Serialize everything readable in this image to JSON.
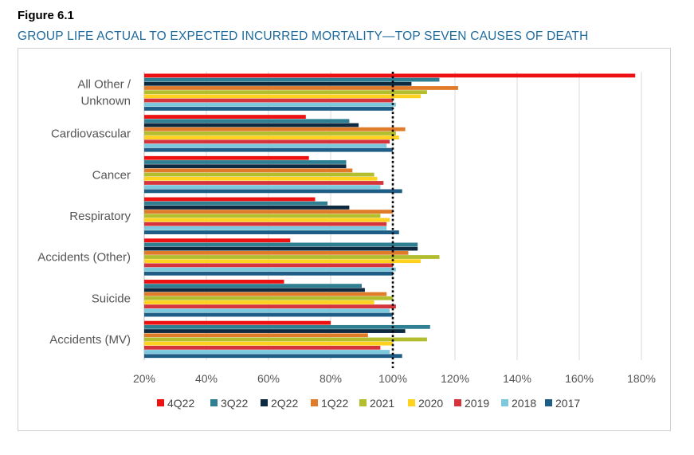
{
  "figure_label": "Figure 6.1",
  "figure_title": "GROUP LIFE ACTUAL TO EXPECTED INCURRED MORTALITY—TOP SEVEN CAUSES OF DEATH",
  "chart_data": {
    "type": "bar",
    "orientation": "horizontal",
    "title": "GROUP LIFE ACTUAL TO EXPECTED INCURRED MORTALITY—TOP SEVEN CAUSES OF DEATH",
    "categories": [
      [
        "All Other /",
        "Unknown"
      ],
      [
        "Cardiovascular"
      ],
      [
        "Cancer"
      ],
      [
        "Respiratory"
      ],
      [
        "Accidents (Other)"
      ],
      [
        "Suicide"
      ],
      [
        "Accidents (MV)"
      ]
    ],
    "xlim": [
      20,
      180
    ],
    "xticks": [
      20,
      40,
      60,
      80,
      100,
      120,
      140,
      160,
      180
    ],
    "xtick_labels": [
      "20%",
      "40%",
      "60%",
      "80%",
      "100%",
      "120%",
      "140%",
      "160%",
      "180%"
    ],
    "reference_line": 100,
    "grid": "vertical",
    "legend_position": "bottom",
    "series": [
      {
        "name": "4Q22",
        "color": "#ee1111",
        "values": [
          178,
          72,
          73,
          75,
          67,
          65,
          80
        ]
      },
      {
        "name": "3Q22",
        "color": "#2f7f93",
        "values": [
          115,
          86,
          85,
          79,
          108,
          90,
          112
        ]
      },
      {
        "name": "2Q22",
        "color": "#0e2a40",
        "values": [
          106,
          89,
          85,
          86,
          108,
          91,
          104
        ]
      },
      {
        "name": "1Q22",
        "color": "#e07b2a",
        "values": [
          121,
          104,
          87,
          100,
          105,
          98,
          92
        ]
      },
      {
        "name": "2021",
        "color": "#b2be2e",
        "values": [
          111,
          101,
          94,
          96,
          115,
          100,
          111
        ]
      },
      {
        "name": "2020",
        "color": "#ffd21f",
        "values": [
          109,
          102,
          95,
          99,
          109,
          94,
          100
        ]
      },
      {
        "name": "2019",
        "color": "#d6343d",
        "values": [
          100,
          99,
          97,
          98,
          100,
          101,
          96
        ]
      },
      {
        "name": "2018",
        "color": "#7cc8dc",
        "values": [
          101,
          98,
          96,
          98,
          101,
          99,
          99
        ]
      },
      {
        "name": "2017",
        "color": "#1e5d86",
        "values": [
          100,
          100,
          103,
          102,
          100,
          100,
          103
        ]
      }
    ]
  }
}
